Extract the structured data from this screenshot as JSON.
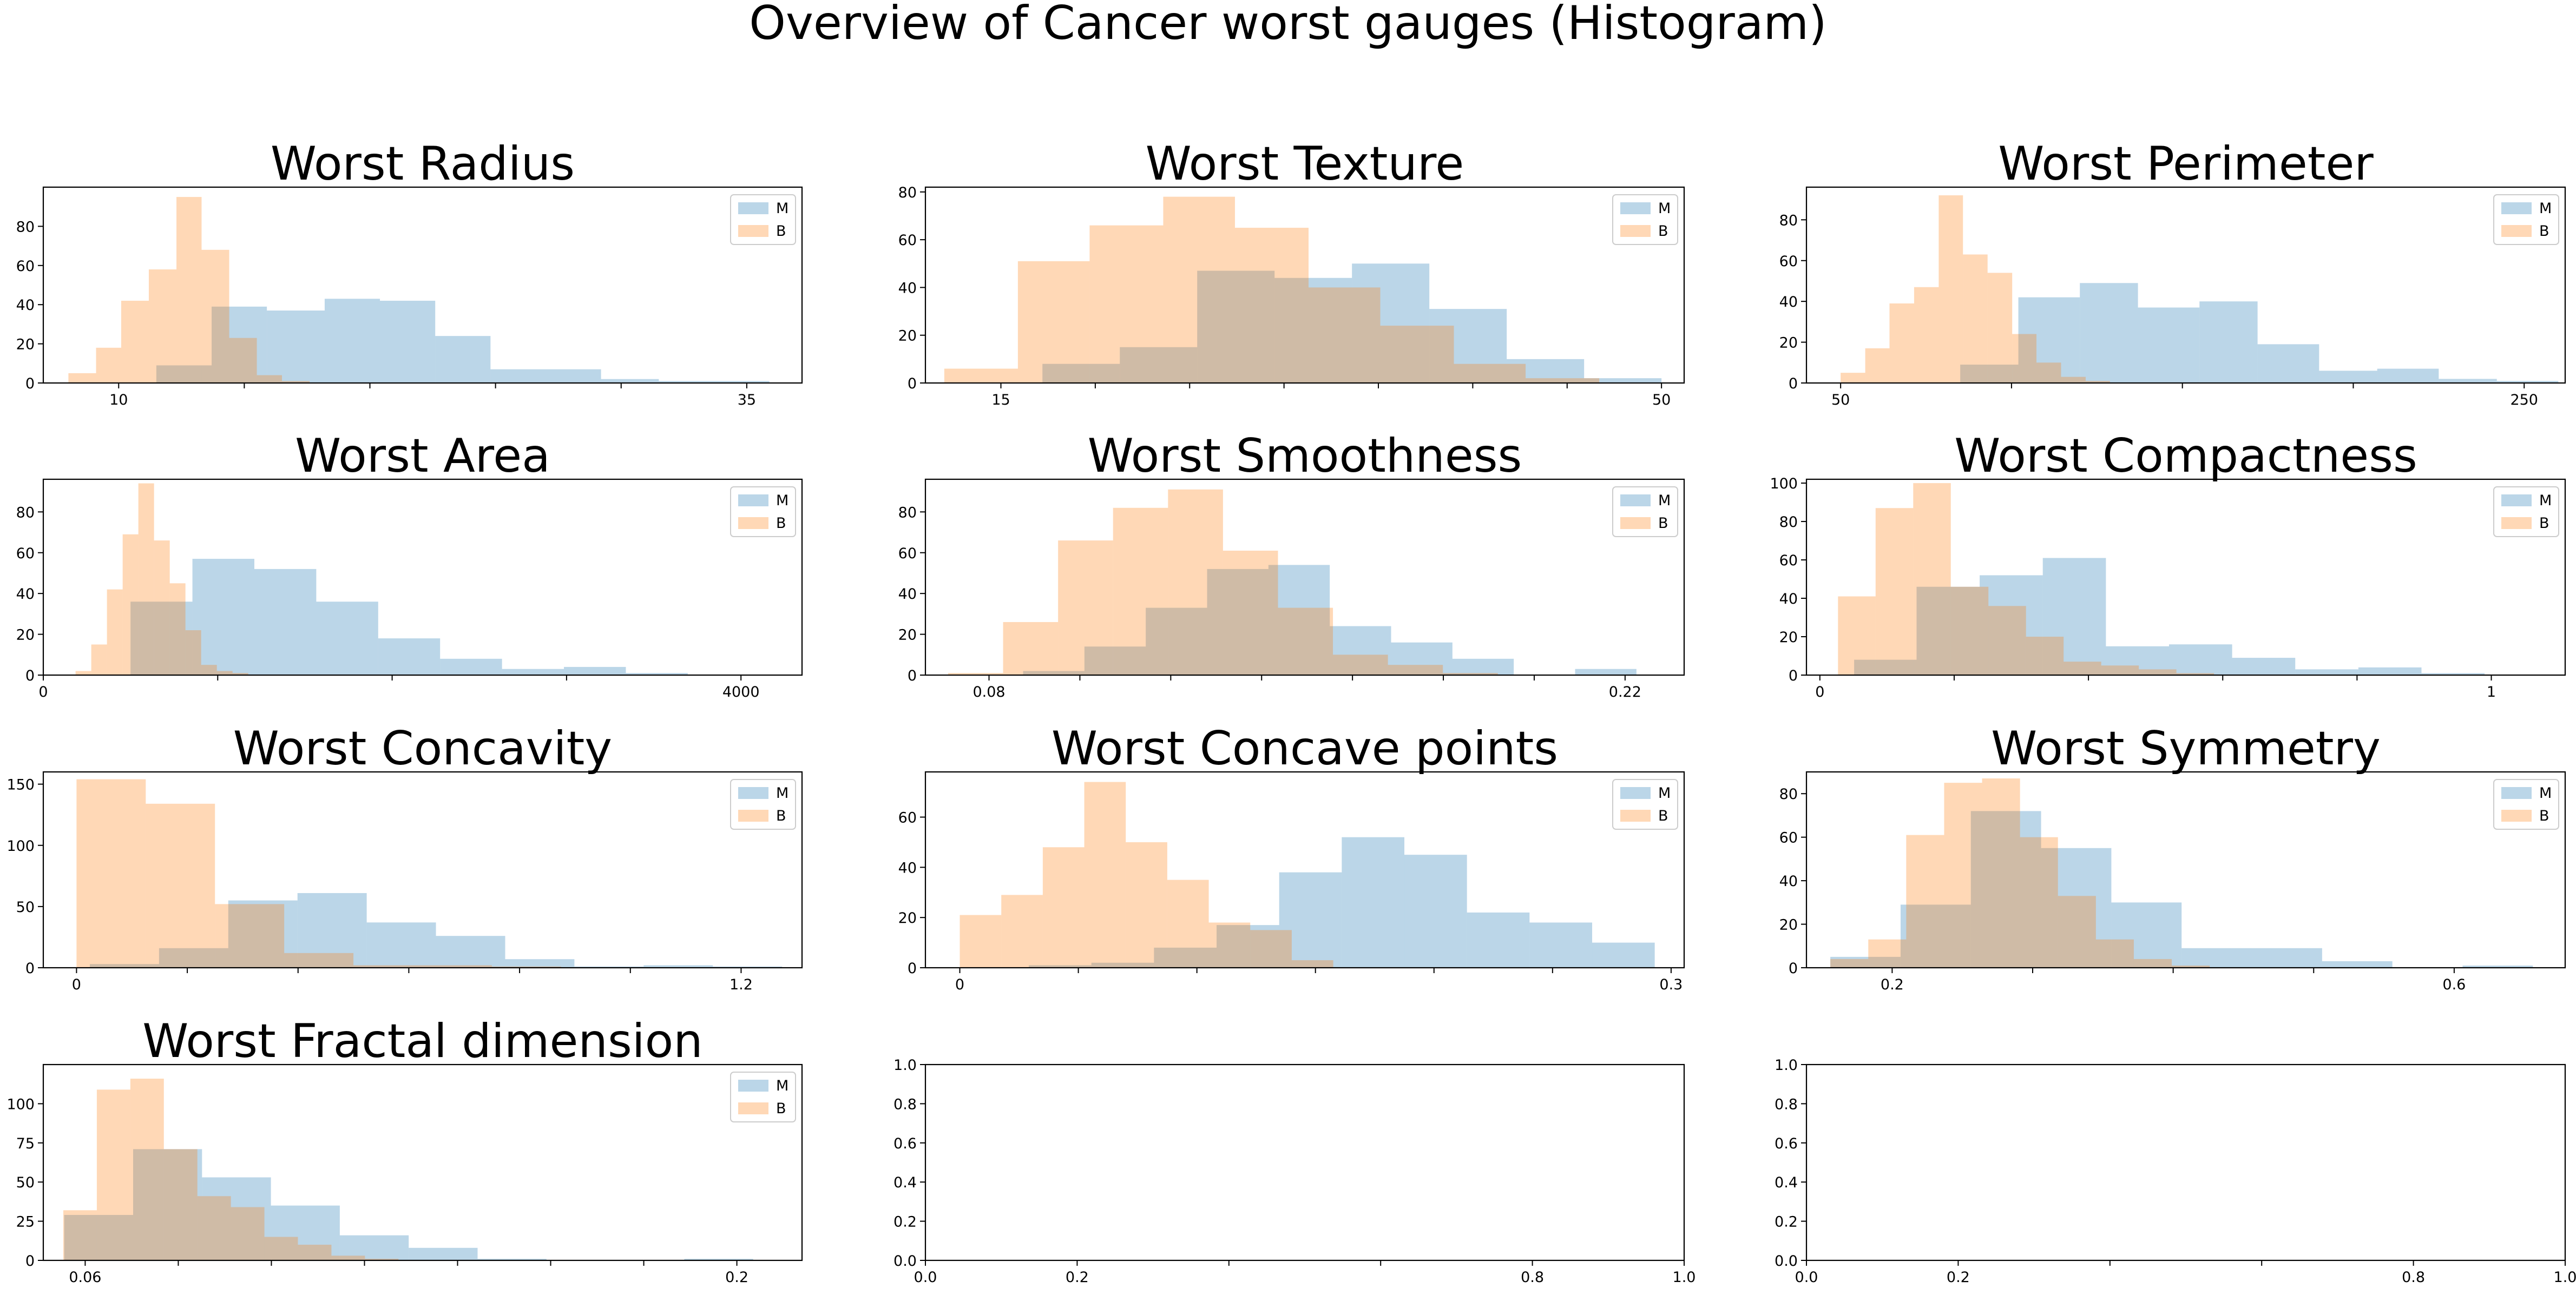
{
  "figure_title": "Overview of Cancer worst gauges (Histogram)",
  "chart_data": [
    {
      "type": "bar",
      "title": "Worst Radius",
      "xlim": [
        7,
        37.2
      ],
      "ylim": [
        0,
        100
      ],
      "xticks": [
        10,
        35
      ],
      "yticks": [
        0,
        20,
        40,
        60,
        80
      ],
      "minor_xticks": [
        15,
        20,
        25,
        30
      ],
      "legend": [
        "M",
        "B"
      ],
      "series": [
        {
          "name": "M",
          "color": "#1f77b4",
          "bin_edges": [
            11.5,
            13.7,
            15.9,
            18.2,
            20.4,
            22.6,
            24.8,
            27.0,
            29.2,
            31.5,
            33.7,
            35.9
          ],
          "counts": [
            9,
            39,
            37,
            43,
            42,
            24,
            7,
            7,
            2,
            1,
            1
          ]
        },
        {
          "name": "B",
          "color": "#ff7f0e",
          "bin_edges": [
            8.0,
            9.1,
            10.1,
            11.2,
            12.3,
            13.3,
            14.4,
            15.5,
            16.5,
            17.6,
            18.7,
            19.7
          ],
          "counts": [
            5,
            18,
            42,
            58,
            95,
            68,
            23,
            4,
            1,
            0,
            0
          ]
        }
      ]
    },
    {
      "type": "bar",
      "title": "Worst Texture",
      "xlim": [
        11,
        51.2
      ],
      "ylim": [
        0,
        82
      ],
      "xticks": [
        15,
        50
      ],
      "yticks": [
        0,
        20,
        40,
        60,
        80
      ],
      "minor_xticks": [
        20,
        25,
        30,
        35,
        40,
        45
      ],
      "legend": [
        "M",
        "B"
      ],
      "series": [
        {
          "name": "M",
          "color": "#1f77b4",
          "bin_edges": [
            17.2,
            21.3,
            25.4,
            29.5,
            33.6,
            37.7,
            41.8,
            45.9,
            50.0
          ],
          "counts": [
            8,
            15,
            47,
            44,
            50,
            31,
            10,
            2
          ]
        },
        {
          "name": "B",
          "color": "#ff7f0e",
          "bin_edges": [
            12.0,
            15.9,
            19.7,
            23.6,
            27.4,
            31.3,
            35.1,
            39.0,
            42.8,
            46.7,
            50.5
          ],
          "counts": [
            6,
            51,
            66,
            78,
            65,
            40,
            24,
            8,
            2,
            0
          ]
        }
      ]
    },
    {
      "type": "bar",
      "title": "Worst Perimeter",
      "xlim": [
        40,
        262
      ],
      "ylim": [
        0,
        96
      ],
      "xticks": [
        50,
        250
      ],
      "yticks": [
        0,
        20,
        40,
        60,
        80
      ],
      "minor_xticks": [
        100,
        150,
        200
      ],
      "legend": [
        "M",
        "B"
      ],
      "series": [
        {
          "name": "M",
          "color": "#1f77b4",
          "bin_edges": [
            85,
            102,
            120,
            137,
            155,
            172,
            190,
            207,
            225,
            242,
            260
          ],
          "counts": [
            9,
            42,
            49,
            37,
            40,
            19,
            6,
            7,
            2,
            1
          ]
        },
        {
          "name": "B",
          "color": "#ff7f0e",
          "bin_edges": [
            50,
            57.2,
            64.3,
            71.5,
            78.7,
            85.8,
            93.0,
            100.2,
            107.3,
            114.5,
            121.7,
            128.8
          ],
          "counts": [
            5,
            17,
            39,
            47,
            92,
            63,
            54,
            24,
            10,
            3,
            1
          ]
        }
      ]
    },
    {
      "type": "bar",
      "title": "Worst Area",
      "xlim": [
        0,
        4350
      ],
      "ylim": [
        0,
        96
      ],
      "xticks": [
        0,
        4000
      ],
      "yticks": [
        0,
        20,
        40,
        60,
        80
      ],
      "minor_xticks": [
        1000,
        2000,
        3000
      ],
      "legend": [
        "M",
        "B"
      ],
      "series": [
        {
          "name": "M",
          "color": "#1f77b4",
          "bin_edges": [
            500,
            855,
            1210,
            1565,
            1920,
            2275,
            2630,
            2985,
            3340,
            3695,
            4050,
            4405
          ],
          "counts": [
            36,
            57,
            52,
            36,
            18,
            8,
            3,
            4,
            1,
            0,
            0
          ]
        },
        {
          "name": "B",
          "color": "#ff7f0e",
          "bin_edges": [
            185,
            275,
            365,
            455,
            545,
            635,
            725,
            815,
            905,
            995,
            1085,
            1175
          ],
          "counts": [
            2,
            15,
            42,
            69,
            94,
            66,
            45,
            22,
            5,
            2,
            1
          ]
        }
      ]
    },
    {
      "type": "bar",
      "title": "Worst Smoothness",
      "xlim": [
        0.066,
        0.233
      ],
      "ylim": [
        0,
        96
      ],
      "xticks": [
        0.08,
        0.22
      ],
      "yticks": [
        0,
        20,
        40,
        60,
        80
      ],
      "minor_xticks": [
        0.1,
        0.12,
        0.14,
        0.16,
        0.18,
        0.2
      ],
      "legend": [
        "M",
        "B"
      ],
      "series": [
        {
          "name": "M",
          "color": "#1f77b4",
          "bin_edges": [
            0.0875,
            0.101,
            0.1145,
            0.128,
            0.1415,
            0.155,
            0.1685,
            0.182,
            0.1955,
            0.209,
            0.2225
          ],
          "counts": [
            2,
            14,
            33,
            52,
            54,
            24,
            16,
            8,
            0,
            3
          ]
        },
        {
          "name": "B",
          "color": "#ff7f0e",
          "bin_edges": [
            0.071,
            0.0831,
            0.0952,
            0.1073,
            0.1194,
            0.1315,
            0.1436,
            0.1557,
            0.1678,
            0.1799,
            0.192
          ],
          "counts": [
            1,
            26,
            66,
            82,
            91,
            61,
            33,
            10,
            5,
            1
          ]
        }
      ]
    },
    {
      "type": "bar",
      "title": "Worst Compactness",
      "xlim": [
        -0.02,
        1.11
      ],
      "ylim": [
        0,
        102
      ],
      "xticks": [
        0.0,
        1.0
      ],
      "yticks": [
        0,
        20,
        40,
        60,
        80,
        100
      ],
      "minor_xticks": [
        0.2,
        0.4,
        0.6,
        0.8
      ],
      "legend": [
        "M",
        "B"
      ],
      "series": [
        {
          "name": "M",
          "color": "#1f77b4",
          "bin_edges": [
            0.051,
            0.144,
            0.238,
            0.332,
            0.426,
            0.52,
            0.614,
            0.708,
            0.802,
            0.896,
            0.99
          ],
          "counts": [
            8,
            46,
            52,
            61,
            15,
            16,
            9,
            3,
            4,
            1
          ]
        },
        {
          "name": "B",
          "color": "#ff7f0e",
          "bin_edges": [
            0.027,
            0.083,
            0.139,
            0.195,
            0.251,
            0.307,
            0.363,
            0.419,
            0.475,
            0.531,
            0.587
          ],
          "counts": [
            41,
            87,
            100,
            46,
            36,
            20,
            7,
            5,
            3,
            1
          ]
        }
      ]
    },
    {
      "type": "bar",
      "title": "Worst Concavity",
      "xlim": [
        -0.06,
        1.31
      ],
      "ylim": [
        0,
        160
      ],
      "xticks": [
        0.0,
        1.2
      ],
      "yticks": [
        0,
        50,
        100,
        150
      ],
      "minor_xticks": [
        0.2,
        0.4,
        0.6,
        0.8,
        1.0
      ],
      "legend": [
        "M",
        "B"
      ],
      "series": [
        {
          "name": "M",
          "color": "#1f77b4",
          "bin_edges": [
            0.024,
            0.149,
            0.274,
            0.399,
            0.524,
            0.649,
            0.774,
            0.899,
            1.024,
            1.149,
            1.274
          ],
          "counts": [
            3,
            16,
            55,
            61,
            37,
            26,
            7,
            1,
            2,
            1
          ]
        },
        {
          "name": "B",
          "color": "#ff7f0e",
          "bin_edges": [
            0.0,
            0.125,
            0.25,
            0.375,
            0.5,
            0.625,
            0.75,
            0.875,
            1.0,
            1.125,
            1.25
          ],
          "counts": [
            154,
            134,
            52,
            12,
            2,
            2,
            1,
            0,
            0,
            0
          ]
        }
      ]
    },
    {
      "type": "bar",
      "title": "Worst Concave points",
      "xlim": [
        -0.0145,
        0.3055
      ],
      "ylim": [
        0,
        78
      ],
      "xticks": [
        0.0,
        0.3
      ],
      "yticks": [
        0,
        20,
        40,
        60
      ],
      "minor_xticks": [
        0.05,
        0.1,
        0.15,
        0.2,
        0.25
      ],
      "legend": [
        "M",
        "B"
      ],
      "series": [
        {
          "name": "M",
          "color": "#1f77b4",
          "bin_edges": [
            0.0291,
            0.0555,
            0.0819,
            0.1083,
            0.1347,
            0.1611,
            0.1875,
            0.2139,
            0.2403,
            0.2667,
            0.2931
          ],
          "counts": [
            1,
            2,
            8,
            17,
            38,
            52,
            45,
            22,
            18,
            10
          ]
        },
        {
          "name": "B",
          "color": "#ff7f0e",
          "bin_edges": [
            0.0,
            0.0175,
            0.035,
            0.0525,
            0.07,
            0.0875,
            0.105,
            0.1225,
            0.14,
            0.1575,
            0.175
          ],
          "counts": [
            21,
            29,
            48,
            74,
            50,
            35,
            18,
            15,
            3,
            0
          ]
        }
      ]
    },
    {
      "type": "bar",
      "title": "Worst Symmetry",
      "xlim": [
        0.139,
        0.679
      ],
      "ylim": [
        0,
        90
      ],
      "xticks": [
        0.2,
        0.6
      ],
      "yticks": [
        0,
        20,
        40,
        60,
        80
      ],
      "minor_xticks": [
        0.3,
        0.4,
        0.5
      ],
      "legend": [
        "M",
        "B"
      ],
      "series": [
        {
          "name": "M",
          "color": "#1f77b4",
          "bin_edges": [
            0.156,
            0.206,
            0.256,
            0.306,
            0.356,
            0.406,
            0.456,
            0.506,
            0.556,
            0.606,
            0.656
          ],
          "counts": [
            5,
            29,
            72,
            55,
            30,
            9,
            9,
            3,
            0,
            1
          ]
        },
        {
          "name": "B",
          "color": "#ff7f0e",
          "bin_edges": [
            0.156,
            0.183,
            0.21,
            0.237,
            0.264,
            0.291,
            0.318,
            0.345,
            0.372,
            0.399,
            0.426
          ],
          "counts": [
            4,
            13,
            61,
            85,
            87,
            60,
            33,
            13,
            4,
            1
          ]
        }
      ]
    },
    {
      "type": "bar",
      "title": "Worst Fractal dimension",
      "xlim": [
        0.051,
        0.214
      ],
      "ylim": [
        0,
        125
      ],
      "xticks": [
        0.06,
        0.2
      ],
      "yticks": [
        0,
        25,
        50,
        75,
        100
      ],
      "minor_xticks": [
        0.08,
        0.1,
        0.12,
        0.14,
        0.16,
        0.18
      ],
      "legend": [
        "M",
        "B"
      ],
      "series": [
        {
          "name": "M",
          "color": "#1f77b4",
          "bin_edges": [
            0.0555,
            0.0703,
            0.0851,
            0.0999,
            0.1147,
            0.1295,
            0.1443,
            0.1591,
            0.1739,
            0.1887,
            0.2035
          ],
          "counts": [
            29,
            71,
            53,
            35,
            16,
            8,
            1,
            0,
            0,
            1
          ]
        },
        {
          "name": "B",
          "color": "#ff7f0e",
          "bin_edges": [
            0.0553,
            0.0625,
            0.0697,
            0.0769,
            0.0841,
            0.0913,
            0.0985,
            0.1057,
            0.1129,
            0.1201,
            0.1273
          ],
          "counts": [
            32,
            109,
            116,
            71,
            41,
            34,
            15,
            10,
            3,
            1
          ]
        }
      ]
    },
    {
      "type": "bar",
      "title": "",
      "xlim": [
        0,
        1
      ],
      "ylim": [
        0,
        1
      ],
      "xticks": [
        0.0,
        0.2,
        0.8,
        1.0
      ],
      "xtick_labels": [
        "0.0",
        "0.2",
        "0.8",
        "1.0"
      ],
      "minor_xticks": [
        0.4,
        0.6
      ],
      "yticks": [
        0.0,
        0.2,
        0.4,
        0.6,
        0.8,
        1.0
      ],
      "ytick_labels": [
        "0.0",
        "0.2",
        "0.4",
        "0.6",
        "0.8",
        "1.0"
      ],
      "legend": [],
      "series": []
    },
    {
      "type": "bar",
      "title": "",
      "xlim": [
        0,
        1
      ],
      "ylim": [
        0,
        1
      ],
      "xticks": [
        0.0,
        0.2,
        0.8,
        1.0
      ],
      "xtick_labels": [
        "0.0",
        "0.2",
        "0.8",
        "1.0"
      ],
      "minor_xticks": [
        0.4,
        0.6
      ],
      "yticks": [
        0.0,
        0.2,
        0.4,
        0.6,
        0.8,
        1.0
      ],
      "ytick_labels": [
        "0.0",
        "0.2",
        "0.4",
        "0.6",
        "0.8",
        "1.0"
      ],
      "legend": [],
      "series": []
    }
  ]
}
